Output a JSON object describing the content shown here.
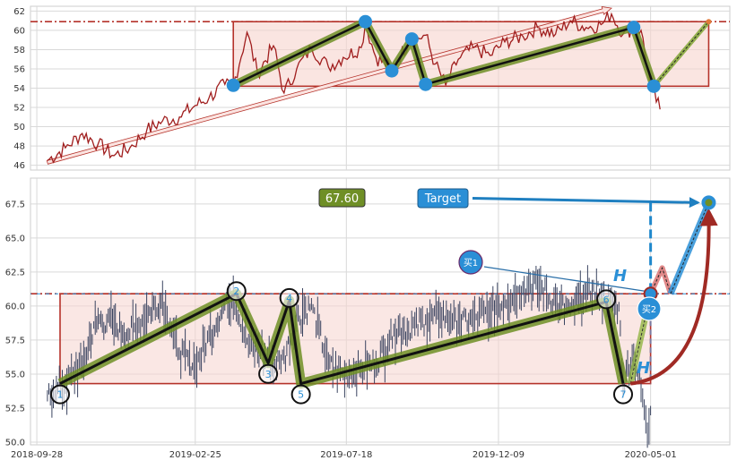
{
  "chart_data": [
    {
      "type": "line",
      "panel": "top",
      "title": "",
      "xlabel": "",
      "ylabel": "",
      "ylim": [
        45.5,
        62.5
      ],
      "y_ticks": [
        46,
        48,
        50,
        52,
        54,
        56,
        58,
        60,
        62
      ],
      "grid": true,
      "series": [
        {
          "color": "#a01e1e",
          "x": [
            "2018-10-08",
            "2018-10-25",
            "2018-11-10",
            "2018-11-25",
            "2018-12-10",
            "2018-12-25",
            "2019-01-10",
            "2019-01-25",
            "2019-02-10",
            "2019-02-25",
            "2019-03-10",
            "2019-03-25",
            "2019-04-02",
            "2019-04-15",
            "2019-04-25",
            "2019-05-10",
            "2019-05-20",
            "2019-06-01",
            "2019-06-15",
            "2019-07-01",
            "2019-07-15",
            "2019-08-01",
            "2019-08-05",
            "2019-08-15",
            "2019-08-30",
            "2019-09-15",
            "2019-10-01",
            "2019-10-10",
            "2019-10-20",
            "2019-11-01",
            "2019-11-15",
            "2019-12-01",
            "2019-12-15",
            "2020-01-01",
            "2020-01-15",
            "2020-02-01",
            "2020-02-15",
            "2020-03-01",
            "2020-03-15",
            "2020-03-25",
            "2020-04-05",
            "2020-04-15",
            "2020-04-22",
            "2020-05-01",
            "2020-05-10"
          ],
          "y": [
            46.5,
            47.8,
            49.3,
            48.2,
            47.0,
            47.8,
            49.6,
            50.6,
            51.0,
            52.2,
            53.0,
            54.4,
            54.3,
            59.8,
            55.5,
            58.4,
            53.5,
            56.0,
            58.2,
            56.2,
            57.2,
            58.2,
            60.7,
            57.2,
            56.0,
            58.8,
            59.5,
            56.5,
            54.3,
            57.0,
            58.2,
            57.4,
            58.8,
            59.4,
            60.3,
            59.6,
            61.0,
            60.3,
            60.6,
            61.7,
            59.6,
            60.3,
            60.0,
            54.2,
            51.8
          ]
        }
      ],
      "pattern_points": [
        {
          "x": "2019-04-02",
          "y": 54.3
        },
        {
          "x": "2019-08-05",
          "y": 60.9
        },
        {
          "x": "2019-08-30",
          "y": 55.8
        },
        {
          "x": "2019-09-18",
          "y": 59.1
        },
        {
          "x": "2019-10-01",
          "y": 54.4
        },
        {
          "x": "2020-04-15",
          "y": 60.3
        },
        {
          "x": "2020-05-04",
          "y": 54.2
        }
      ],
      "projection": [
        {
          "x": "2020-05-04",
          "y": 54.2
        },
        {
          "x": "2020-06-25",
          "y": 60.9
        }
      ],
      "trend_arrow": {
        "from": {
          "x": "2018-10-08",
          "y": 46.3
        },
        "to": {
          "x": "2020-03-25",
          "y": 62.3
        }
      },
      "channel": {
        "x0": "2019-04-02",
        "x1": "2020-06-25",
        "y_low": 54.2,
        "y_high": 60.9
      },
      "resistance_level": 60.9
    },
    {
      "type": "candlestick",
      "panel": "bottom",
      "title": "",
      "xlabel": "",
      "ylabel": "",
      "ylim": [
        49.8,
        69.4
      ],
      "y_ticks": [
        50.0,
        52.5,
        55.0,
        57.5,
        60.0,
        62.5,
        65.0,
        67.5
      ],
      "x_ticks": [
        "2018-09-28",
        "2019-02-25",
        "2019-07-18",
        "2019-12-09",
        "2020-05-01"
      ],
      "grid": true,
      "series": [
        {
          "color": "#3a4460",
          "x": [
            "2018-10-08",
            "2018-10-25",
            "2018-11-10",
            "2018-11-25",
            "2018-12-10",
            "2018-12-25",
            "2019-01-10",
            "2019-01-25",
            "2019-02-10",
            "2019-02-25",
            "2019-03-10",
            "2019-03-25",
            "2019-04-02",
            "2019-04-15",
            "2019-04-25",
            "2019-05-10",
            "2019-05-20",
            "2019-06-01",
            "2019-06-15",
            "2019-07-01",
            "2019-07-15",
            "2019-08-01",
            "2019-08-15",
            "2019-09-01",
            "2019-09-15",
            "2019-10-01",
            "2019-10-15",
            "2019-11-01",
            "2019-11-15",
            "2019-12-01",
            "2019-12-15",
            "2020-01-01",
            "2020-01-15",
            "2020-02-01",
            "2020-02-15",
            "2020-03-01",
            "2020-03-15",
            "2020-04-01",
            "2020-04-05",
            "2020-04-15",
            "2020-04-22",
            "2020-04-28",
            "2020-05-01"
          ],
          "y": [
            53.4,
            54.2,
            55.8,
            59.0,
            58.6,
            58.0,
            59.4,
            60.4,
            56.6,
            55.6,
            57.8,
            60.0,
            60.9,
            57.4,
            57.0,
            55.8,
            56.2,
            59.0,
            60.0,
            55.8,
            55.0,
            55.4,
            55.8,
            58.2,
            58.2,
            59.0,
            59.4,
            58.8,
            59.0,
            59.6,
            60.4,
            61.2,
            61.6,
            60.2,
            59.6,
            60.9,
            61.1,
            59.8,
            54.3,
            56.4,
            53.8,
            50.8,
            52.4
          ]
        }
      ],
      "pattern_points": [
        {
          "label": "1",
          "x": "2018-10-20",
          "y": 54.3
        },
        {
          "label": "2",
          "x": "2019-04-05",
          "y": 60.9
        },
        {
          "label": "3",
          "x": "2019-05-05",
          "y": 55.8
        },
        {
          "label": "4",
          "x": "2019-05-25",
          "y": 60.4
        },
        {
          "label": "5",
          "x": "2019-06-05",
          "y": 54.3
        },
        {
          "label": "6",
          "x": "2020-03-20",
          "y": 60.3
        },
        {
          "label": "7",
          "x": "2020-04-05",
          "y": 54.3
        }
      ],
      "channel": {
        "x0": "2018-10-20",
        "x1": "2020-05-01",
        "y_low": 54.3,
        "y_high": 60.9
      },
      "resistance_level": 60.9,
      "projection": [
        {
          "x": "2020-04-12",
          "y": 54.3
        },
        {
          "x": "2020-05-01",
          "y": 60.9
        },
        {
          "x": "2020-05-12",
          "y": 62.8
        },
        {
          "x": "2020-05-20",
          "y": 60.9
        },
        {
          "x": "2020-06-25",
          "y": 67.6
        }
      ],
      "target_point": {
        "x": "2020-06-25",
        "y": 67.6
      },
      "target_box": {
        "value_label": "67.60",
        "label": "Target"
      },
      "buy_markers": [
        {
          "label": "买1",
          "x": "2020-05-01",
          "y": 60.9
        },
        {
          "label": "买2",
          "x": "2020-05-20",
          "y": 60.9
        }
      ],
      "height_markers": [
        {
          "label": "H",
          "x": "2020-05-01",
          "y": 61.9
        },
        {
          "label": "H",
          "x": "2020-05-01",
          "y": 55.1
        }
      ]
    }
  ]
}
